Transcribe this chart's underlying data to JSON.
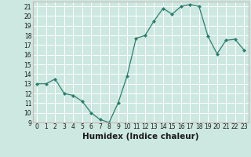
{
  "x": [
    0,
    1,
    2,
    3,
    4,
    5,
    6,
    7,
    8,
    9,
    10,
    11,
    12,
    13,
    14,
    15,
    16,
    17,
    18,
    19,
    20,
    21,
    22,
    23
  ],
  "y": [
    13.0,
    13.0,
    13.5,
    12.0,
    11.8,
    11.2,
    10.0,
    9.3,
    9.0,
    11.0,
    13.8,
    17.7,
    18.0,
    19.5,
    20.8,
    20.2,
    21.0,
    21.2,
    21.0,
    17.9,
    16.1,
    17.5,
    17.6,
    16.5
  ],
  "line_color": "#2e7d6e",
  "marker": "D",
  "marker_size": 2.0,
  "bg_color": "#cce8e0",
  "grid_color": "#ffffff",
  "spine_color": "#c8b8b8",
  "xlabel": "Humidex (Indice chaleur)",
  "ylim": [
    9,
    21.5
  ],
  "xlim": [
    -0.5,
    23.5
  ],
  "yticks": [
    9,
    10,
    11,
    12,
    13,
    14,
    15,
    16,
    17,
    18,
    19,
    20,
    21
  ],
  "xticks": [
    0,
    1,
    2,
    3,
    4,
    5,
    6,
    7,
    8,
    9,
    10,
    11,
    12,
    13,
    14,
    15,
    16,
    17,
    18,
    19,
    20,
    21,
    22,
    23
  ],
  "tick_fontsize": 5.5,
  "xlabel_fontsize": 7.5,
  "linewidth": 0.9
}
